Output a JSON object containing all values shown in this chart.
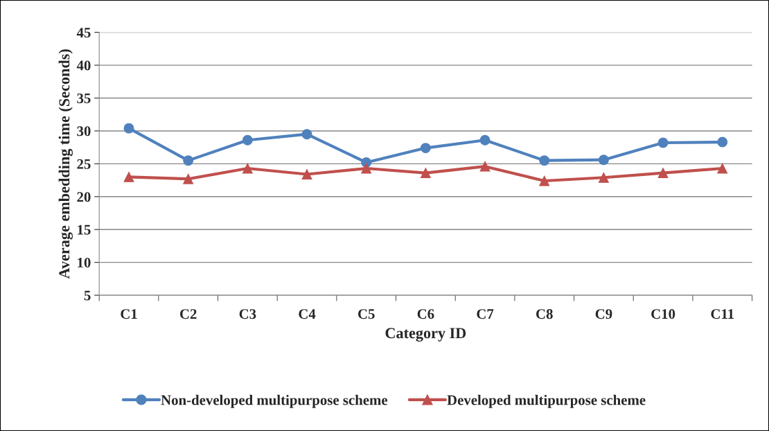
{
  "chart_data": {
    "type": "line",
    "xlabel": "Category ID",
    "ylabel": "Average embedding time (Seconds)",
    "categories": [
      "C1",
      "C2",
      "C3",
      "C4",
      "C5",
      "C6",
      "C7",
      "C8",
      "C9",
      "C10",
      "C11"
    ],
    "series": [
      {
        "name": "Non-developed multipurpose scheme",
        "color": "#4f81bd",
        "marker": "circle",
        "values": [
          30.4,
          25.5,
          28.6,
          29.5,
          25.2,
          27.4,
          28.6,
          25.5,
          25.6,
          28.2,
          28.3
        ]
      },
      {
        "name": "Developed multipurpose scheme",
        "color": "#c0504d",
        "marker": "triangle",
        "values": [
          23.0,
          22.7,
          24.3,
          23.4,
          24.3,
          23.6,
          24.6,
          22.4,
          22.9,
          23.6,
          24.3
        ]
      }
    ],
    "ylim": [
      5,
      45
    ],
    "yticks": [
      5,
      10,
      15,
      20,
      25,
      30,
      35,
      40,
      45
    ],
    "grid": "y",
    "legend": "bottom",
    "line_style": "solid"
  }
}
